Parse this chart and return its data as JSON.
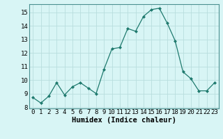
{
  "x": [
    0,
    1,
    2,
    3,
    4,
    5,
    6,
    7,
    8,
    9,
    10,
    11,
    12,
    13,
    14,
    15,
    16,
    17,
    18,
    19,
    20,
    21,
    22,
    23
  ],
  "y": [
    8.7,
    8.3,
    8.8,
    9.8,
    8.9,
    9.5,
    9.8,
    9.4,
    9.0,
    10.8,
    12.3,
    12.4,
    13.8,
    13.6,
    14.7,
    15.2,
    15.3,
    14.2,
    12.9,
    10.6,
    10.1,
    9.2,
    9.2,
    9.8
  ],
  "line_color": "#1f7a6e",
  "marker": "D",
  "marker_size": 2.0,
  "bg_color": "#d8f5f5",
  "grid_color": "#b8dede",
  "xlabel": "Humidex (Indice chaleur)",
  "xlim": [
    -0.5,
    23.5
  ],
  "ylim": [
    7.9,
    15.6
  ],
  "yticks": [
    8,
    9,
    10,
    11,
    12,
    13,
    14,
    15
  ],
  "xticks": [
    0,
    1,
    2,
    3,
    4,
    5,
    6,
    7,
    8,
    9,
    10,
    11,
    12,
    13,
    14,
    15,
    16,
    17,
    18,
    19,
    20,
    21,
    22,
    23
  ],
  "xlabel_fontsize": 7.5,
  "tick_fontsize": 6.5
}
